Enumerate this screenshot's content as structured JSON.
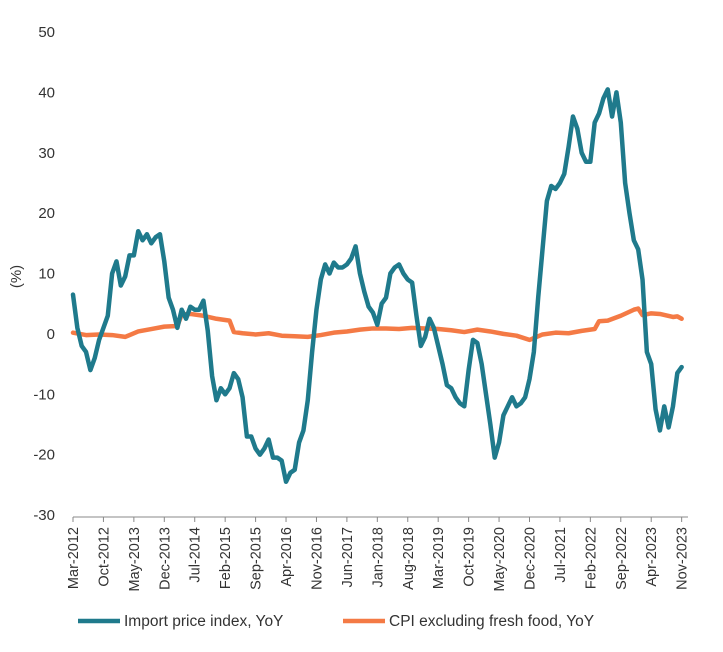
{
  "colors": {
    "import_price": "#1F7A8C",
    "cpi_core": "#F47A45",
    "axis": "#888888",
    "text": "#333333"
  },
  "chart_data": {
    "type": "line",
    "ylabel": "(%)",
    "ylim": [
      -30,
      50
    ],
    "yticks": [
      -30,
      -20,
      -10,
      0,
      10,
      20,
      30,
      40,
      50
    ],
    "xlim": [
      "2012-03",
      "2023-12"
    ],
    "xticks": [
      "Mar-2012",
      "Oct-2012",
      "May-2013",
      "Dec-2013",
      "Jul-2014",
      "Feb-2015",
      "Sep-2015",
      "Apr-2016",
      "Nov-2016",
      "Jun-2017",
      "Jan-2018",
      "Aug-2018",
      "Mar-2019",
      "Oct-2019",
      "May-2020",
      "Dec-2020",
      "Jul-2021",
      "Feb-2022",
      "Sep-2022",
      "Apr-2023",
      "Nov-2023"
    ],
    "grid": false,
    "legend": "bottom",
    "series": [
      {
        "name": "Import price index, YoY",
        "color": "#1F7A8C",
        "points": [
          [
            "2012-03",
            6.5
          ],
          [
            "2012-04",
            1
          ],
          [
            "2012-05",
            -2
          ],
          [
            "2012-06",
            -3
          ],
          [
            "2012-07",
            -6
          ],
          [
            "2012-08",
            -4
          ],
          [
            "2012-09",
            -1
          ],
          [
            "2012-10",
            1
          ],
          [
            "2012-11",
            3
          ],
          [
            "2012-12",
            10
          ],
          [
            "2013-01",
            12
          ],
          [
            "2013-02",
            8
          ],
          [
            "2013-03",
            9.5
          ],
          [
            "2013-04",
            13
          ],
          [
            "2013-05",
            13
          ],
          [
            "2013-06",
            17
          ],
          [
            "2013-07",
            15.5
          ],
          [
            "2013-08",
            16.5
          ],
          [
            "2013-09",
            15
          ],
          [
            "2013-10",
            16
          ],
          [
            "2013-11",
            16.5
          ],
          [
            "2013-12",
            12
          ],
          [
            "2014-01",
            6
          ],
          [
            "2014-02",
            4
          ],
          [
            "2014-03",
            1
          ],
          [
            "2014-04",
            4
          ],
          [
            "2014-05",
            2.5
          ],
          [
            "2014-06",
            4.5
          ],
          [
            "2014-07",
            4
          ],
          [
            "2014-08",
            4
          ],
          [
            "2014-09",
            5.5
          ],
          [
            "2014-10",
            0.5
          ],
          [
            "2014-11",
            -7
          ],
          [
            "2014-12",
            -11
          ],
          [
            "2015-01",
            -9
          ],
          [
            "2015-02",
            -10
          ],
          [
            "2015-03",
            -9
          ],
          [
            "2015-04",
            -6.5
          ],
          [
            "2015-05",
            -7.5
          ],
          [
            "2015-06",
            -10.5
          ],
          [
            "2015-07",
            -17
          ],
          [
            "2015-08",
            -17
          ],
          [
            "2015-09",
            -19
          ],
          [
            "2015-10",
            -20
          ],
          [
            "2015-11",
            -19
          ],
          [
            "2015-12",
            -17.5
          ],
          [
            "2016-01",
            -20.5
          ],
          [
            "2016-02",
            -20.5
          ],
          [
            "2016-03",
            -21
          ],
          [
            "2016-04",
            -24.5
          ],
          [
            "2016-05",
            -23
          ],
          [
            "2016-06",
            -22.5
          ],
          [
            "2016-07",
            -18
          ],
          [
            "2016-08",
            -16
          ],
          [
            "2016-09",
            -11
          ],
          [
            "2016-10",
            -3
          ],
          [
            "2016-11",
            4
          ],
          [
            "2016-12",
            9
          ],
          [
            "2017-01",
            11.5
          ],
          [
            "2017-02",
            10
          ],
          [
            "2017-03",
            11.8
          ],
          [
            "2017-04",
            11
          ],
          [
            "2017-05",
            11
          ],
          [
            "2017-06",
            11.5
          ],
          [
            "2017-07",
            12.5
          ],
          [
            "2017-08",
            14.5
          ],
          [
            "2017-09",
            10
          ],
          [
            "2017-10",
            7
          ],
          [
            "2017-11",
            4.5
          ],
          [
            "2017-12",
            3.5
          ],
          [
            "2018-01",
            1.5
          ],
          [
            "2018-02",
            5
          ],
          [
            "2018-03",
            6
          ],
          [
            "2018-04",
            10
          ],
          [
            "2018-05",
            11
          ],
          [
            "2018-06",
            11.5
          ],
          [
            "2018-07",
            10
          ],
          [
            "2018-08",
            9
          ],
          [
            "2018-09",
            8.5
          ],
          [
            "2018-10",
            3
          ],
          [
            "2018-11",
            -2
          ],
          [
            "2018-12",
            -0.5
          ],
          [
            "2019-01",
            2.5
          ],
          [
            "2019-02",
            1
          ],
          [
            "2019-03",
            -2
          ],
          [
            "2019-04",
            -5
          ],
          [
            "2019-05",
            -8.5
          ],
          [
            "2019-06",
            -9
          ],
          [
            "2019-07",
            -10.5
          ],
          [
            "2019-08",
            -11.5
          ],
          [
            "2019-09",
            -12
          ],
          [
            "2019-10",
            -6
          ],
          [
            "2019-11",
            -1
          ],
          [
            "2019-12",
            -1.5
          ],
          [
            "2020-01",
            -5
          ],
          [
            "2020-02",
            -10
          ],
          [
            "2020-03",
            -15
          ],
          [
            "2020-04",
            -20.5
          ],
          [
            "2020-05",
            -18
          ],
          [
            "2020-06",
            -13.5
          ],
          [
            "2020-07",
            -12
          ],
          [
            "2020-08",
            -10.5
          ],
          [
            "2020-09",
            -12
          ],
          [
            "2020-10",
            -11.5
          ],
          [
            "2020-11",
            -10.5
          ],
          [
            "2020-12",
            -7.5
          ],
          [
            "2021-01",
            -3
          ],
          [
            "2021-02",
            6
          ],
          [
            "2021-03",
            14
          ],
          [
            "2021-04",
            22
          ],
          [
            "2021-05",
            24.5
          ],
          [
            "2021-06",
            24
          ],
          [
            "2021-07",
            25
          ],
          [
            "2021-08",
            26.5
          ],
          [
            "2021-09",
            31
          ],
          [
            "2021-10",
            36
          ],
          [
            "2021-11",
            34
          ],
          [
            "2021-12",
            30
          ],
          [
            "2022-01",
            28.5
          ],
          [
            "2022-02",
            28.5
          ],
          [
            "2022-03",
            35
          ],
          [
            "2022-04",
            36.5
          ],
          [
            "2022-05",
            39
          ],
          [
            "2022-06",
            40.5
          ],
          [
            "2022-07",
            36
          ],
          [
            "2022-08",
            40
          ],
          [
            "2022-09",
            35
          ],
          [
            "2022-10",
            25
          ],
          [
            "2022-11",
            20
          ],
          [
            "2022-12",
            15.5
          ],
          [
            "2023-01",
            14
          ],
          [
            "2023-02",
            9
          ],
          [
            "2023-03",
            -3
          ],
          [
            "2023-04",
            -5
          ],
          [
            "2023-05",
            -12.5
          ],
          [
            "2023-06",
            -16
          ],
          [
            "2023-07",
            -12
          ],
          [
            "2023-08",
            -15.5
          ],
          [
            "2023-09",
            -12
          ],
          [
            "2023-10",
            -6.5
          ],
          [
            "2023-11",
            -5.5
          ]
        ]
      },
      {
        "name": "CPI excluding fresh food, YoY",
        "color": "#F47A45",
        "points": [
          [
            "2012-03",
            0.2
          ],
          [
            "2012-06",
            -0.2
          ],
          [
            "2012-09",
            -0.1
          ],
          [
            "2012-12",
            -0.2
          ],
          [
            "2013-03",
            -0.5
          ],
          [
            "2013-06",
            0.4
          ],
          [
            "2013-09",
            0.8
          ],
          [
            "2013-12",
            1.2
          ],
          [
            "2014-03",
            1.3
          ],
          [
            "2014-04",
            3.2
          ],
          [
            "2014-06",
            3.3
          ],
          [
            "2014-09",
            3.0
          ],
          [
            "2014-12",
            2.5
          ],
          [
            "2015-03",
            2.2
          ],
          [
            "2015-04",
            0.3
          ],
          [
            "2015-06",
            0.1
          ],
          [
            "2015-09",
            -0.1
          ],
          [
            "2015-12",
            0.1
          ],
          [
            "2016-03",
            -0.3
          ],
          [
            "2016-06",
            -0.4
          ],
          [
            "2016-09",
            -0.5
          ],
          [
            "2016-12",
            -0.2
          ],
          [
            "2017-03",
            0.2
          ],
          [
            "2017-06",
            0.4
          ],
          [
            "2017-09",
            0.7
          ],
          [
            "2017-12",
            0.9
          ],
          [
            "2018-03",
            0.9
          ],
          [
            "2018-06",
            0.8
          ],
          [
            "2018-09",
            1.0
          ],
          [
            "2018-12",
            0.9
          ],
          [
            "2019-03",
            0.8
          ],
          [
            "2019-06",
            0.6
          ],
          [
            "2019-09",
            0.3
          ],
          [
            "2019-12",
            0.7
          ],
          [
            "2020-03",
            0.4
          ],
          [
            "2020-06",
            0.0
          ],
          [
            "2020-09",
            -0.3
          ],
          [
            "2020-12",
            -1.0
          ],
          [
            "2021-03",
            -0.1
          ],
          [
            "2021-06",
            0.2
          ],
          [
            "2021-09",
            0.1
          ],
          [
            "2021-12",
            0.5
          ],
          [
            "2022-03",
            0.8
          ],
          [
            "2022-04",
            2.1
          ],
          [
            "2022-06",
            2.2
          ],
          [
            "2022-09",
            3.0
          ],
          [
            "2022-12",
            4.0
          ],
          [
            "2023-01",
            4.2
          ],
          [
            "2023-02",
            3.1
          ],
          [
            "2023-04",
            3.4
          ],
          [
            "2023-06",
            3.3
          ],
          [
            "2023-09",
            2.8
          ],
          [
            "2023-10",
            2.9
          ],
          [
            "2023-11",
            2.5
          ]
        ]
      }
    ]
  }
}
